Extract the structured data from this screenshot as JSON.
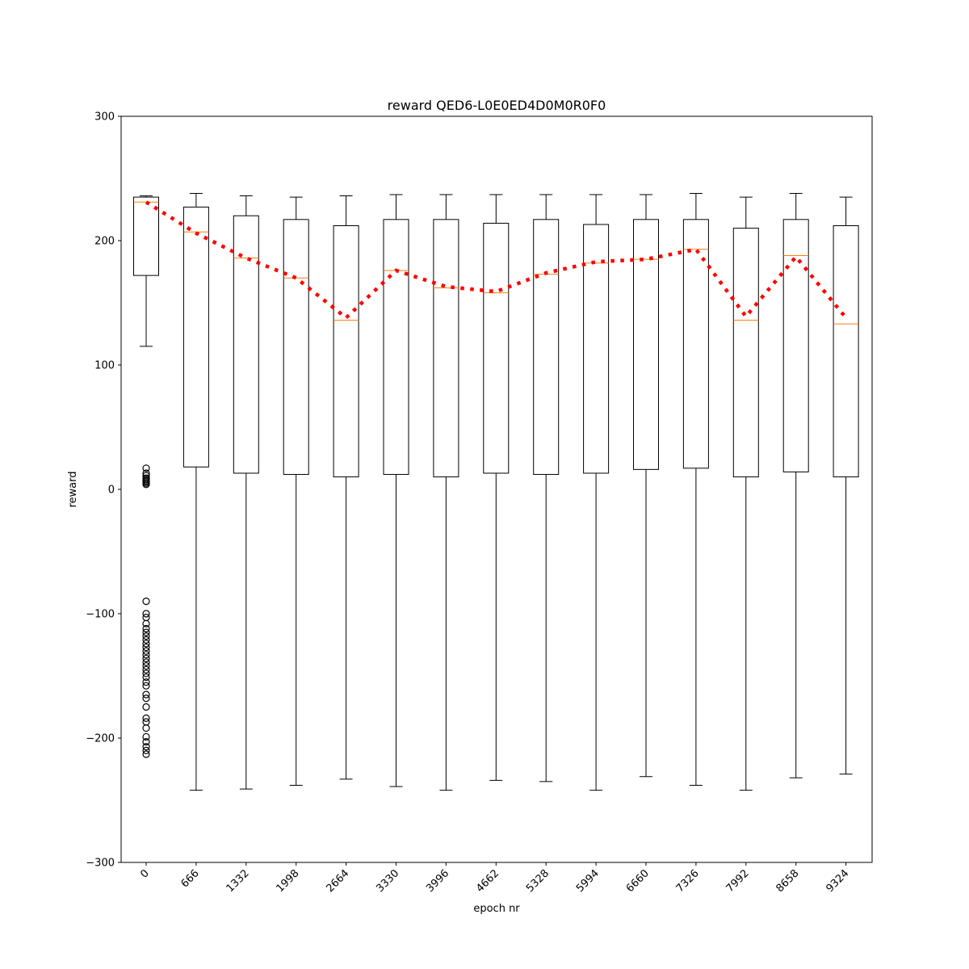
{
  "chart_data": {
    "type": "boxplot",
    "title": "reward QED6-L0E0ED4D0M0R0F0",
    "xlabel": "epoch nr",
    "ylabel": "reward",
    "ylim": [
      -300,
      300
    ],
    "yticks": [
      -300,
      -200,
      -100,
      0,
      100,
      200,
      300
    ],
    "ytick_labels": [
      "−300",
      "−200",
      "−100",
      "0",
      "100",
      "200",
      "300"
    ],
    "categories": [
      "0",
      "666",
      "1332",
      "1998",
      "2664",
      "3330",
      "3996",
      "4662",
      "5328",
      "5994",
      "6660",
      "7326",
      "7992",
      "8658",
      "9324"
    ],
    "boxes": [
      {
        "whisker_low": 115,
        "q1": 172,
        "median": 231,
        "q3": 235,
        "whisker_high": 236,
        "outliers": [
          17,
          13,
          11,
          9,
          8,
          7,
          6,
          5,
          4,
          -90,
          -100,
          -103,
          -108,
          -112,
          -115,
          -118,
          -121,
          -124,
          -127,
          -130,
          -133,
          -136,
          -139,
          -142,
          -145,
          -148,
          -151,
          -155,
          -158,
          -165,
          -168,
          -175,
          -184,
          -187,
          -192,
          -199,
          -203,
          -207,
          -210,
          -213
        ]
      },
      {
        "whisker_low": -242,
        "q1": 18,
        "median": 207,
        "q3": 227,
        "whisker_high": 238,
        "outliers": []
      },
      {
        "whisker_low": -241,
        "q1": 13,
        "median": 186,
        "q3": 220,
        "whisker_high": 236,
        "outliers": []
      },
      {
        "whisker_low": -238,
        "q1": 12,
        "median": 170,
        "q3": 217,
        "whisker_high": 235,
        "outliers": []
      },
      {
        "whisker_low": -233,
        "q1": 10,
        "median": 136,
        "q3": 212,
        "whisker_high": 236,
        "outliers": []
      },
      {
        "whisker_low": -239,
        "q1": 12,
        "median": 176,
        "q3": 217,
        "whisker_high": 237,
        "outliers": []
      },
      {
        "whisker_low": -242,
        "q1": 10,
        "median": 162,
        "q3": 217,
        "whisker_high": 237,
        "outliers": []
      },
      {
        "whisker_low": -234,
        "q1": 13,
        "median": 158,
        "q3": 214,
        "whisker_high": 237,
        "outliers": []
      },
      {
        "whisker_low": -235,
        "q1": 12,
        "median": 173,
        "q3": 217,
        "whisker_high": 237,
        "outliers": []
      },
      {
        "whisker_low": -242,
        "q1": 13,
        "median": 182,
        "q3": 213,
        "whisker_high": 237,
        "outliers": []
      },
      {
        "whisker_low": -231,
        "q1": 16,
        "median": 185,
        "q3": 217,
        "whisker_high": 237,
        "outliers": []
      },
      {
        "whisker_low": -238,
        "q1": 17,
        "median": 193,
        "q3": 217,
        "whisker_high": 238,
        "outliers": []
      },
      {
        "whisker_low": -242,
        "q1": 10,
        "median": 136,
        "q3": 210,
        "whisker_high": 235,
        "outliers": []
      },
      {
        "whisker_low": -232,
        "q1": 14,
        "median": 188,
        "q3": 217,
        "whisker_high": 238,
        "outliers": []
      },
      {
        "whisker_low": -229,
        "q1": 10,
        "median": 133,
        "q3": 212,
        "whisker_high": 235,
        "outliers": []
      }
    ],
    "mean_line": {
      "values": [
        231,
        206,
        186,
        170,
        138,
        176,
        163,
        159,
        174,
        183,
        185,
        193,
        139,
        187,
        138
      ]
    },
    "colors": {
      "box": "#000000",
      "median": "#ff7f0e",
      "mean_line": "#ff0000",
      "outlier": "#000000"
    }
  }
}
